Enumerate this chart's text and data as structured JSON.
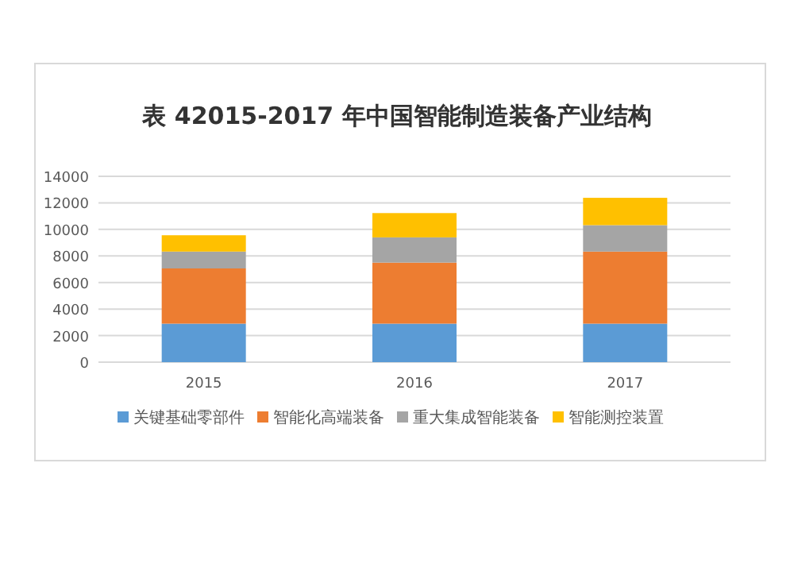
{
  "chart_data": {
    "type": "bar",
    "title": "表 42015-2017 年中国智能制造装备产业结构",
    "categories": [
      "2015",
      "2016",
      "2017"
    ],
    "series": [
      {
        "name": "关键基础零部件",
        "color": "#5b9bd5",
        "values": [
          2900,
          2900,
          2900
        ]
      },
      {
        "name": "智能化高端装备",
        "color": "#ed7d31",
        "values": [
          4160,
          4600,
          5430
        ]
      },
      {
        "name": "重大集成智能装备",
        "color": "#a5a5a5",
        "values": [
          1270,
          1900,
          1990
        ]
      },
      {
        "name": "智能测控装置",
        "color": "#ffc000",
        "values": [
          1230,
          1830,
          2060
        ]
      }
    ],
    "stacked": true,
    "ylim": [
      0,
      14000
    ],
    "yticks": [
      0,
      2000,
      4000,
      6000,
      8000,
      10000,
      12000,
      14000
    ],
    "grid": "y",
    "legend": "bottom"
  }
}
